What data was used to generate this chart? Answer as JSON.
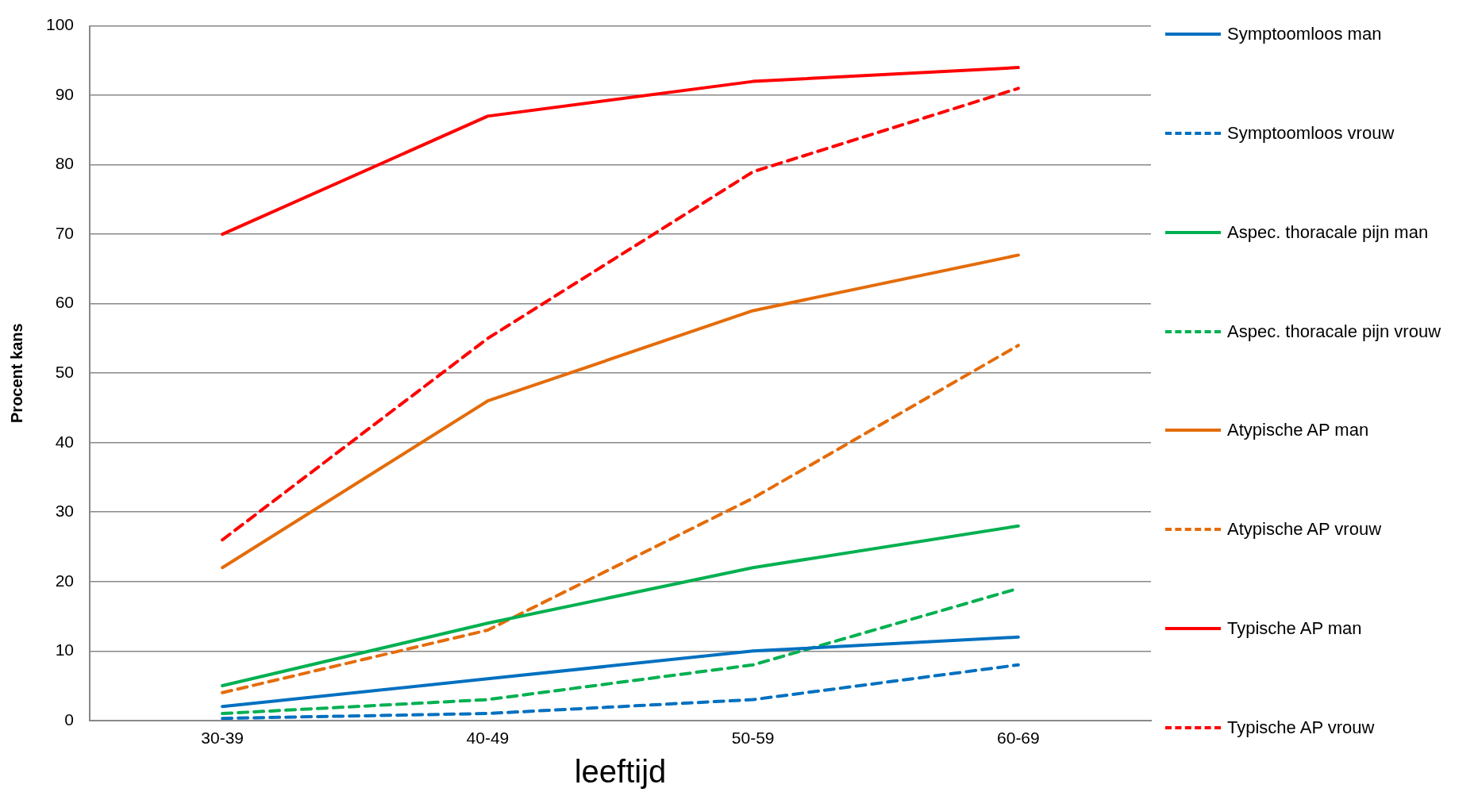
{
  "chart_data": {
    "type": "line",
    "xlabel": "leeftijd",
    "ylabel": "Procent kans",
    "categories": [
      "30-39",
      "40-49",
      "50-59",
      "60-69"
    ],
    "ylim": [
      0,
      100
    ],
    "yticks": [
      0,
      10,
      20,
      30,
      40,
      50,
      60,
      70,
      80,
      90,
      100
    ],
    "grid": "y",
    "legend": "right",
    "marker": "none",
    "series": [
      {
        "name": "Symptoomloos man",
        "color": "#0070c0",
        "line_style": "solid",
        "values": [
          2,
          6,
          10,
          12
        ]
      },
      {
        "name": "Symptoomloos vrouw",
        "color": "#0070c0",
        "line_style": "dashed",
        "values": [
          0.3,
          1,
          3,
          8
        ]
      },
      {
        "name": "Aspec. thoracale pijn man",
        "color": "#00b050",
        "line_style": "solid",
        "values": [
          5,
          14,
          22,
          28
        ]
      },
      {
        "name": "Aspec. thoracale pijn vrouw",
        "color": "#00b050",
        "line_style": "dashed",
        "values": [
          1,
          3,
          8,
          19
        ]
      },
      {
        "name": "Atypische AP man",
        "color": "#e46c0a",
        "line_style": "solid",
        "values": [
          22,
          46,
          59,
          67
        ]
      },
      {
        "name": "Atypische AP vrouw",
        "color": "#e46c0a",
        "line_style": "dashed",
        "values": [
          4,
          13,
          32,
          54
        ]
      },
      {
        "name": "Typische AP man",
        "color": "#ff0000",
        "line_style": "solid",
        "values": [
          70,
          87,
          92,
          94
        ]
      },
      {
        "name": "Typische AP vrouw",
        "color": "#ff0000",
        "line_style": "dashed",
        "values": [
          26,
          55,
          79,
          91
        ]
      }
    ]
  }
}
